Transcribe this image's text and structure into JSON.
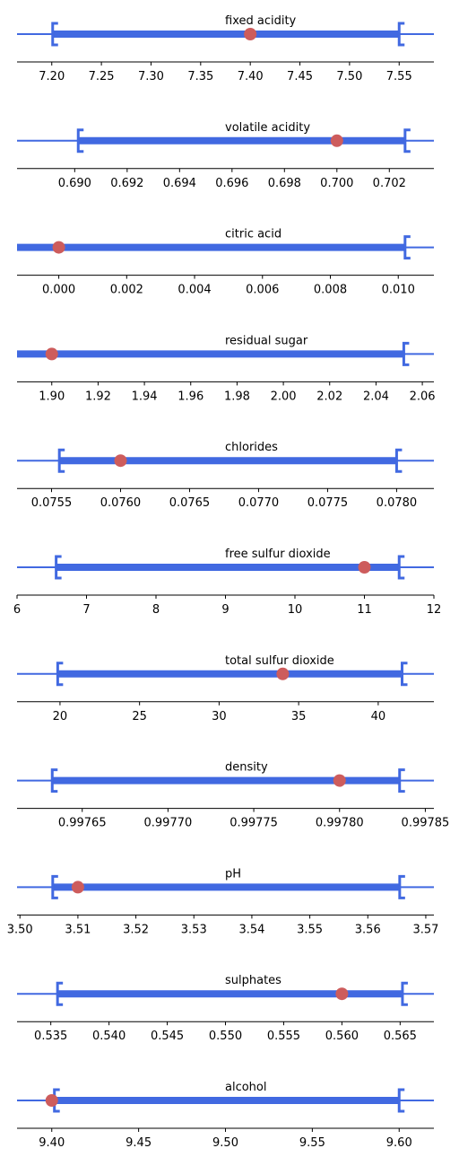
{
  "colors": {
    "interval": "#4169E1",
    "point": "#CD5C5C",
    "axis": "#000000"
  },
  "chart_data": [
    {
      "type": "interval",
      "title": "fixed acidity",
      "xlim": [
        7.165,
        7.585
      ],
      "low": 7.2,
      "high": 7.55,
      "value": 7.4,
      "show_low_bracket": true,
      "show_high_bracket": true,
      "ticks": [
        {
          "v": 7.2,
          "label": "7.20"
        },
        {
          "v": 7.25,
          "label": "7.25"
        },
        {
          "v": 7.3,
          "label": "7.30"
        },
        {
          "v": 7.35,
          "label": "7.35"
        },
        {
          "v": 7.4,
          "label": "7.40"
        },
        {
          "v": 7.45,
          "label": "7.45"
        },
        {
          "v": 7.5,
          "label": "7.50"
        },
        {
          "v": 7.55,
          "label": "7.55"
        }
      ]
    },
    {
      "type": "interval",
      "title": "volatile acidity",
      "xlim": [
        0.6878,
        0.7037
      ],
      "low": 0.6901,
      "high": 0.7026,
      "value": 0.7,
      "show_low_bracket": true,
      "show_high_bracket": true,
      "ticks": [
        {
          "v": 0.69,
          "label": "0.690"
        },
        {
          "v": 0.692,
          "label": "0.692"
        },
        {
          "v": 0.694,
          "label": "0.694"
        },
        {
          "v": 0.696,
          "label": "0.696"
        },
        {
          "v": 0.698,
          "label": "0.698"
        },
        {
          "v": 0.7,
          "label": "0.700"
        },
        {
          "v": 0.702,
          "label": "0.702"
        }
      ]
    },
    {
      "type": "interval",
      "title": "citric acid",
      "xlim": [
        -0.00123,
        0.01105
      ],
      "low": -0.00123,
      "high": 0.0102,
      "value": 0.0,
      "show_low_bracket": false,
      "show_high_bracket": true,
      "ticks": [
        {
          "v": 0.0,
          "label": "0.000"
        },
        {
          "v": 0.002,
          "label": "0.002"
        },
        {
          "v": 0.004,
          "label": "0.004"
        },
        {
          "v": 0.006,
          "label": "0.006"
        },
        {
          "v": 0.008,
          "label": "0.008"
        },
        {
          "v": 0.01,
          "label": "0.010"
        }
      ]
    },
    {
      "type": "interval",
      "title": "residual sugar",
      "xlim": [
        1.885,
        2.065
      ],
      "low": 1.885,
      "high": 2.052,
      "value": 1.9,
      "show_low_bracket": false,
      "show_high_bracket": true,
      "ticks": [
        {
          "v": 1.9,
          "label": "1.90"
        },
        {
          "v": 1.92,
          "label": "1.92"
        },
        {
          "v": 1.94,
          "label": "1.94"
        },
        {
          "v": 1.96,
          "label": "1.96"
        },
        {
          "v": 1.98,
          "label": "1.98"
        },
        {
          "v": 2.0,
          "label": "2.00"
        },
        {
          "v": 2.02,
          "label": "2.02"
        },
        {
          "v": 2.04,
          "label": "2.04"
        },
        {
          "v": 2.06,
          "label": "2.06"
        }
      ]
    },
    {
      "type": "interval",
      "title": "chlorides",
      "xlim": [
        0.07525,
        0.07827
      ],
      "low": 0.07555,
      "high": 0.078,
      "value": 0.076,
      "show_low_bracket": true,
      "show_high_bracket": true,
      "ticks": [
        {
          "v": 0.0755,
          "label": "0.0755"
        },
        {
          "v": 0.076,
          "label": "0.0760"
        },
        {
          "v": 0.0765,
          "label": "0.0765"
        },
        {
          "v": 0.077,
          "label": "0.0770"
        },
        {
          "v": 0.0775,
          "label": "0.0775"
        },
        {
          "v": 0.078,
          "label": "0.0780"
        }
      ]
    },
    {
      "type": "interval",
      "title": "free sulfur dioxide",
      "xlim": [
        6,
        12
      ],
      "low": 6.55,
      "high": 11.5,
      "value": 11,
      "show_low_bracket": true,
      "show_high_bracket": true,
      "ticks": [
        {
          "v": 6,
          "label": "6"
        },
        {
          "v": 7,
          "label": "7"
        },
        {
          "v": 8,
          "label": "8"
        },
        {
          "v": 9,
          "label": "9"
        },
        {
          "v": 10,
          "label": "10"
        },
        {
          "v": 11,
          "label": "11"
        },
        {
          "v": 12,
          "label": "12"
        }
      ]
    },
    {
      "type": "interval",
      "title": "total sulfur dioxide",
      "xlim": [
        17.3,
        43.5
      ],
      "low": 19.8,
      "high": 41.5,
      "value": 34,
      "show_low_bracket": true,
      "show_high_bracket": true,
      "ticks": [
        {
          "v": 20,
          "label": "20"
        },
        {
          "v": 25,
          "label": "25"
        },
        {
          "v": 30,
          "label": "30"
        },
        {
          "v": 35,
          "label": "35"
        },
        {
          "v": 40,
          "label": "40"
        }
      ]
    },
    {
      "type": "interval",
      "title": "density",
      "xlim": [
        0.997612,
        0.997855
      ],
      "low": 0.997632,
      "high": 0.997835,
      "value": 0.9978,
      "show_low_bracket": true,
      "show_high_bracket": true,
      "ticks": [
        {
          "v": 0.99765,
          "label": "0.99765"
        },
        {
          "v": 0.9977,
          "label": "0.99770"
        },
        {
          "v": 0.99775,
          "label": "0.99775"
        },
        {
          "v": 0.9978,
          "label": "0.99780"
        },
        {
          "v": 0.99785,
          "label": "0.99785"
        }
      ]
    },
    {
      "type": "interval",
      "title": "pH",
      "xlim": [
        3.4995,
        3.5714
      ],
      "low": 3.5055,
      "high": 3.5655,
      "value": 3.51,
      "show_low_bracket": true,
      "show_high_bracket": true,
      "ticks": [
        {
          "v": 3.5,
          "label": "3.50"
        },
        {
          "v": 3.51,
          "label": "3.51"
        },
        {
          "v": 3.52,
          "label": "3.52"
        },
        {
          "v": 3.53,
          "label": "3.53"
        },
        {
          "v": 3.54,
          "label": "3.54"
        },
        {
          "v": 3.55,
          "label": "3.55"
        },
        {
          "v": 3.56,
          "label": "3.56"
        },
        {
          "v": 3.57,
          "label": "3.57"
        }
      ]
    },
    {
      "type": "interval",
      "title": "sulphates",
      "xlim": [
        0.5321,
        0.5679
      ],
      "low": 0.5355,
      "high": 0.5652,
      "value": 0.56,
      "show_low_bracket": true,
      "show_high_bracket": true,
      "ticks": [
        {
          "v": 0.535,
          "label": "0.535"
        },
        {
          "v": 0.54,
          "label": "0.540"
        },
        {
          "v": 0.545,
          "label": "0.545"
        },
        {
          "v": 0.55,
          "label": "0.550"
        },
        {
          "v": 0.555,
          "label": "0.555"
        },
        {
          "v": 0.56,
          "label": "0.560"
        },
        {
          "v": 0.565,
          "label": "0.565"
        }
      ]
    },
    {
      "type": "interval",
      "title": "alcohol",
      "xlim": [
        9.38,
        9.62
      ],
      "low": 9.401,
      "high": 9.6,
      "value": 9.4,
      "show_low_bracket": true,
      "show_high_bracket": true,
      "ticks": [
        {
          "v": 9.4,
          "label": "9.40"
        },
        {
          "v": 9.45,
          "label": "9.45"
        },
        {
          "v": 9.5,
          "label": "9.50"
        },
        {
          "v": 9.55,
          "label": "9.55"
        },
        {
          "v": 9.6,
          "label": "9.60"
        }
      ]
    }
  ]
}
